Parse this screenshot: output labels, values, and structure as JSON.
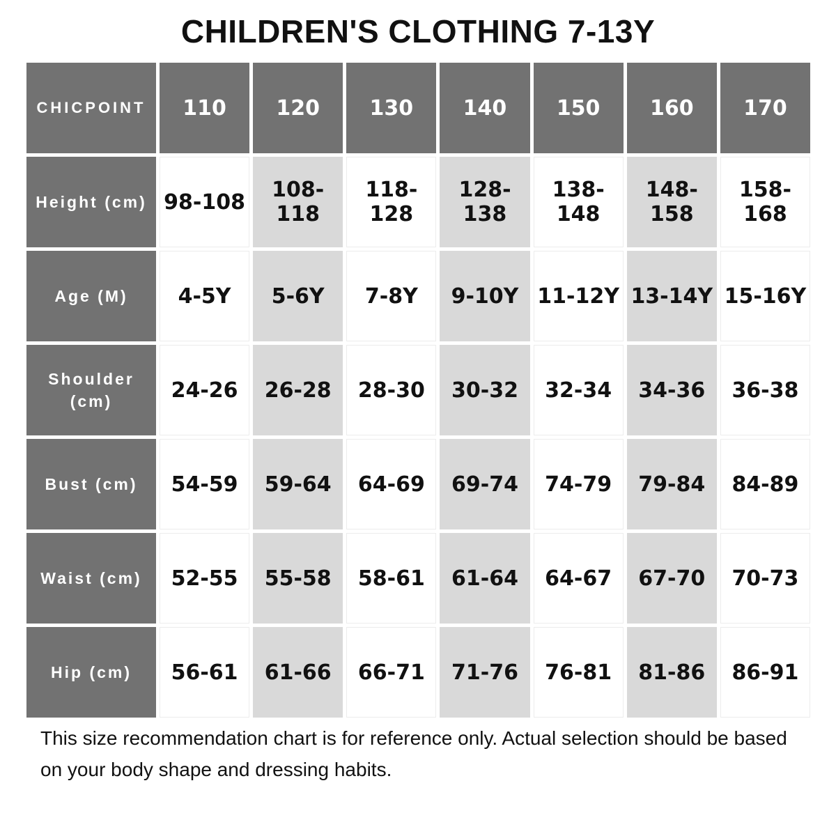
{
  "title": "CHILDREN'S CLOTHING 7-13Y",
  "colors": {
    "header_bg": "#727272",
    "cell_shaded": "#d9d9d9",
    "cell_white": "#ffffff",
    "text": "#111111"
  },
  "chart_data": {
    "type": "table",
    "title": "CHILDREN'S CLOTHING 7-13Y",
    "brand": "CHICPOINT",
    "columns": [
      "110",
      "120",
      "130",
      "140",
      "150",
      "160",
      "170"
    ],
    "shaded_column_indices": [
      1,
      3,
      5
    ],
    "rows": [
      {
        "label": "Height (cm)",
        "values": [
          "98-108",
          "108-118",
          "118-128",
          "128-138",
          "138-148",
          "148-158",
          "158-168"
        ]
      },
      {
        "label": "Age (M)",
        "values": [
          "4-5Y",
          "5-6Y",
          "7-8Y",
          "9-10Y",
          "11-12Y",
          "13-14Y",
          "15-16Y"
        ]
      },
      {
        "label": "Shoulder (cm)",
        "values": [
          "24-26",
          "26-28",
          "28-30",
          "30-32",
          "32-34",
          "34-36",
          "36-38"
        ]
      },
      {
        "label": "Bust (cm)",
        "values": [
          "54-59",
          "59-64",
          "64-69",
          "69-74",
          "74-79",
          "79-84",
          "84-89"
        ]
      },
      {
        "label": "Waist (cm)",
        "values": [
          "52-55",
          "55-58",
          "58-61",
          "61-64",
          "64-67",
          "67-70",
          "70-73"
        ]
      },
      {
        "label": "Hip (cm)",
        "values": [
          "56-61",
          "61-66",
          "66-71",
          "71-76",
          "76-81",
          "81-86",
          "86-91"
        ]
      }
    ]
  },
  "footer": {
    "note": "This size recommendation chart is for reference only. Actual selection should be based on your body shape and dressing habits."
  }
}
